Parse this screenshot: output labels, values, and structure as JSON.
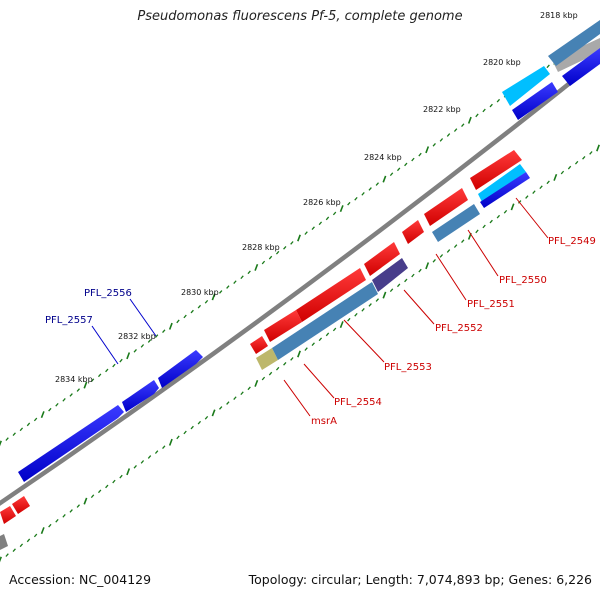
{
  "title": "Pseudomonas fluorescens Pf-5, complete genome",
  "footer": {
    "accession": "Accession: NC_004129",
    "summary": "Topology: circular; Length: 7,074,893 bp; Genes: 6,226"
  },
  "scale_labels": [
    "2818 kbp",
    "2820 kbp",
    "2822 kbp",
    "2824 kbp",
    "2826 kbp",
    "2828 kbp",
    "2830 kbp",
    "2832 kbp",
    "2834 kbp"
  ],
  "gene_labels": {
    "forward": [
      "PFL_2556",
      "PFL_2557"
    ],
    "reverse": [
      "PFL_2549",
      "PFL_2550",
      "PFL_2551",
      "PFL_2552",
      "PFL_2553",
      "PFL_2554",
      "msrA"
    ]
  },
  "colors": {
    "forward_gene": "#0000ee",
    "reverse_gene": "#ff0000",
    "steel_blue": "#4682b4",
    "cyan": "#00bfff",
    "slate": "#483d8b",
    "khaki": "#bdb76b",
    "backbone": "#808080",
    "tick": "#006400",
    "forward_label": "#00008b",
    "reverse_label": "#cc0000"
  }
}
